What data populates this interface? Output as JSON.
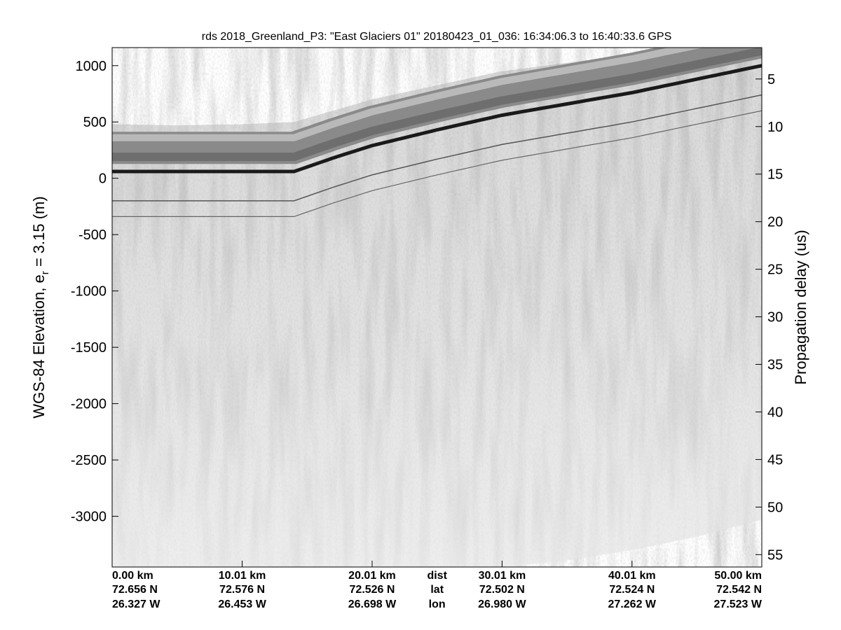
{
  "chart_data": {
    "type": "heatmap",
    "title": "rds 2018_Greenland_P3: \"East Glaciers 01\"  20180423_01_036: 16:34:06.3 to 16:40:33.6 GPS",
    "ylabel_main": "WGS-84 Elevation, e",
    "ylabel_sub": "r",
    "ylabel_tail": " = 3.15 (m)",
    "ylabel_right": "Propagation delay (us)",
    "colormap": "grayscale",
    "x_range_km": [
      0,
      50
    ],
    "y_left_range_m": [
      -3450,
      1160
    ],
    "y_right_range_us": [
      1.7,
      56.3
    ],
    "left_ticks": [
      1000,
      500,
      0,
      -500,
      -1000,
      -1500,
      -2000,
      -2500,
      -3000
    ],
    "left_tick_labels": [
      "1000",
      "500",
      "0",
      "-500",
      "-1000",
      "-1500",
      "-2000",
      "-2500",
      "-3000"
    ],
    "right_ticks": [
      5,
      10,
      15,
      20,
      25,
      30,
      35,
      40,
      45,
      50,
      55
    ],
    "right_tick_labels": [
      "5",
      "10",
      "15",
      "20",
      "25",
      "30",
      "35",
      "40",
      "45",
      "50",
      "55"
    ],
    "x_ticks": [
      {
        "km": 0,
        "dist": "0.00 km",
        "lat": "72.656 N",
        "lon": "26.327 W"
      },
      {
        "km": 10.01,
        "dist": "10.01 km",
        "lat": "72.576 N",
        "lon": "26.453 W"
      },
      {
        "km": 20.01,
        "dist": "20.01 km",
        "lat": "72.526 N",
        "lon": "26.698 W"
      },
      {
        "km": 30.01,
        "dist": "30.01 km",
        "lat": "72.502 N",
        "lon": "26.980 W"
      },
      {
        "km": 40.01,
        "dist": "40.01 km",
        "lat": "72.524 N",
        "lon": "27.262 W"
      },
      {
        "km": 50.0,
        "dist": "50.00 km",
        "lat": "72.542 N",
        "lon": "27.523 W"
      }
    ],
    "x_row_labels": {
      "dist": "dist",
      "lat": "lat",
      "lon": "lon"
    },
    "surface_echo": {
      "x": [
        0,
        5,
        10,
        14,
        17,
        20,
        25,
        30,
        35,
        40,
        45,
        50
      ],
      "y": [
        60,
        60,
        60,
        60,
        180,
        290,
        430,
        560,
        660,
        760,
        880,
        1000
      ]
    },
    "top_of_data": {
      "x": [
        0,
        5,
        10,
        14,
        20,
        30,
        40,
        50
      ],
      "y": [
        480,
        470,
        480,
        500,
        700,
        950,
        1100,
        1160
      ]
    },
    "bottom_of_data": {
      "x": [
        0,
        30,
        35,
        40,
        45,
        50
      ],
      "y": [
        -3450,
        -3450,
        -3390,
        -3300,
        -3180,
        -3030
      ]
    }
  }
}
